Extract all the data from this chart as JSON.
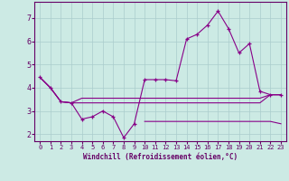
{
  "background_color": "#cceae4",
  "grid_color": "#aacccc",
  "line_color": "#880088",
  "xlabel": "Windchill (Refroidissement éolien,°C)",
  "xlim": [
    -0.5,
    23.5
  ],
  "ylim": [
    1.7,
    7.7
  ],
  "yticks": [
    2,
    3,
    4,
    5,
    6,
    7
  ],
  "xticks": [
    0,
    1,
    2,
    3,
    4,
    5,
    6,
    7,
    8,
    9,
    10,
    11,
    12,
    13,
    14,
    15,
    16,
    17,
    18,
    19,
    20,
    21,
    22,
    23
  ],
  "series": [
    [
      4.45,
      4.0,
      3.4,
      3.35,
      2.65,
      2.75,
      3.0,
      2.75,
      1.85,
      2.45,
      4.35,
      4.35,
      4.35,
      4.3,
      6.1,
      6.3,
      6.7,
      7.3,
      6.55,
      5.5,
      5.9,
      3.85,
      3.7,
      3.7
    ],
    [
      4.45,
      4.0,
      3.4,
      3.35,
      3.55,
      3.55,
      3.55,
      3.55,
      3.55,
      3.55,
      3.55,
      3.55,
      3.55,
      3.55,
      3.55,
      3.55,
      3.55,
      3.55,
      3.55,
      3.55,
      3.55,
      3.55,
      3.7,
      3.7
    ],
    [
      4.45,
      4.0,
      3.4,
      3.35,
      3.35,
      3.35,
      3.35,
      3.35,
      3.35,
      3.35,
      3.35,
      3.35,
      3.35,
      3.35,
      3.35,
      3.35,
      3.35,
      3.35,
      3.35,
      3.35,
      3.35,
      3.35,
      3.7,
      3.7
    ],
    [
      null,
      null,
      null,
      null,
      null,
      null,
      null,
      null,
      null,
      null,
      2.55,
      2.55,
      2.55,
      2.55,
      2.55,
      2.55,
      2.55,
      2.55,
      2.55,
      2.55,
      2.55,
      2.55,
      2.55,
      2.45
    ]
  ]
}
